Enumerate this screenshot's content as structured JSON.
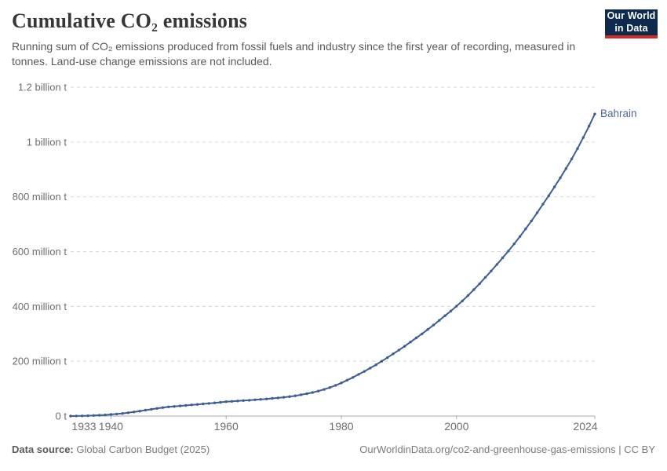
{
  "header": {
    "logo": {
      "line1": "Our World",
      "line2": "in Data"
    }
  },
  "chart_data": {
    "type": "line",
    "title": "Cumulative CO₂ emissions",
    "subtitle": "Running sum of CO₂ emissions produced from fossil fuels and industry since the first year of recording, measured in tonnes. Land-use change emissions are not included.",
    "unit": "million tonnes",
    "x_axis": {
      "start_year": 1933,
      "end_year": 2024,
      "tick_years": [
        1933,
        1940,
        1960,
        1980,
        2000,
        2024
      ]
    },
    "y_axis": {
      "range_million_t": [
        0,
        1200
      ],
      "grid": "dashed",
      "ticks": [
        {
          "value": 0,
          "label": "0 t"
        },
        {
          "value": 200,
          "label": "200 million t"
        },
        {
          "value": 400,
          "label": "400 million t"
        },
        {
          "value": 600,
          "label": "600 million t"
        },
        {
          "value": 800,
          "label": "800 million t"
        },
        {
          "value": 1000,
          "label": "1 billion t"
        },
        {
          "value": 1200,
          "label": "1.2 billion t"
        }
      ]
    },
    "legend_position": "end-of-line-label",
    "series": [
      {
        "name": "Bahrain",
        "color": "#3c5e97",
        "label_color": "#4c6a9c",
        "years": [
          1933,
          1934,
          1935,
          1936,
          1937,
          1938,
          1939,
          1940,
          1941,
          1942,
          1943,
          1944,
          1945,
          1946,
          1947,
          1948,
          1949,
          1950,
          1951,
          1952,
          1953,
          1954,
          1955,
          1956,
          1957,
          1958,
          1959,
          1960,
          1961,
          1962,
          1963,
          1964,
          1965,
          1966,
          1967,
          1968,
          1969,
          1970,
          1971,
          1972,
          1973,
          1974,
          1975,
          1976,
          1977,
          1978,
          1979,
          1980,
          1981,
          1982,
          1983,
          1984,
          1985,
          1986,
          1987,
          1988,
          1989,
          1990,
          1991,
          1992,
          1993,
          1994,
          1995,
          1996,
          1997,
          1998,
          1999,
          2000,
          2001,
          2002,
          2003,
          2004,
          2005,
          2006,
          2007,
          2008,
          2009,
          2010,
          2011,
          2012,
          2013,
          2014,
          2015,
          2016,
          2017,
          2018,
          2019,
          2020,
          2021,
          2022,
          2023,
          2024
        ],
        "values_million_t": [
          0.1,
          0.3,
          0.6,
          1.1,
          1.9,
          2.9,
          4.1,
          5.6,
          7.4,
          9.4,
          11.9,
          14.9,
          18.1,
          21.4,
          24.7,
          27.9,
          30.9,
          33.4,
          35.2,
          37,
          38.8,
          40.6,
          42.4,
          44.3,
          46.2,
          48.2,
          50.2,
          52.3,
          53.6,
          54.9,
          56.3,
          57.7,
          59.2,
          60.8,
          62.5,
          64.3,
          66.3,
          68.5,
          71,
          74,
          77.5,
          81.5,
          86,
          91,
          97,
          104,
          112,
          121,
          131,
          141,
          152,
          163,
          175,
          187,
          200,
          213,
          227,
          241,
          255,
          270,
          285,
          300,
          316,
          332,
          349,
          366,
          383,
          401,
          420,
          440,
          461,
          483,
          506,
          529,
          553,
          577,
          602,
          628,
          655,
          683,
          712,
          742,
          773,
          804,
          836,
          869,
          903,
          938,
          976,
          1016,
          1058,
          1102
        ]
      }
    ],
    "colors": {
      "grid": "#d8d8d8",
      "axis": "#a8a8a8",
      "tick_text": "#6e6e6e"
    }
  },
  "footer": {
    "source_label": "Data source:",
    "source_value": "Global Carbon Budget (2025)",
    "link": "OurWorldinData.org/co2-and-greenhouse-gas-emissions | CC BY"
  }
}
